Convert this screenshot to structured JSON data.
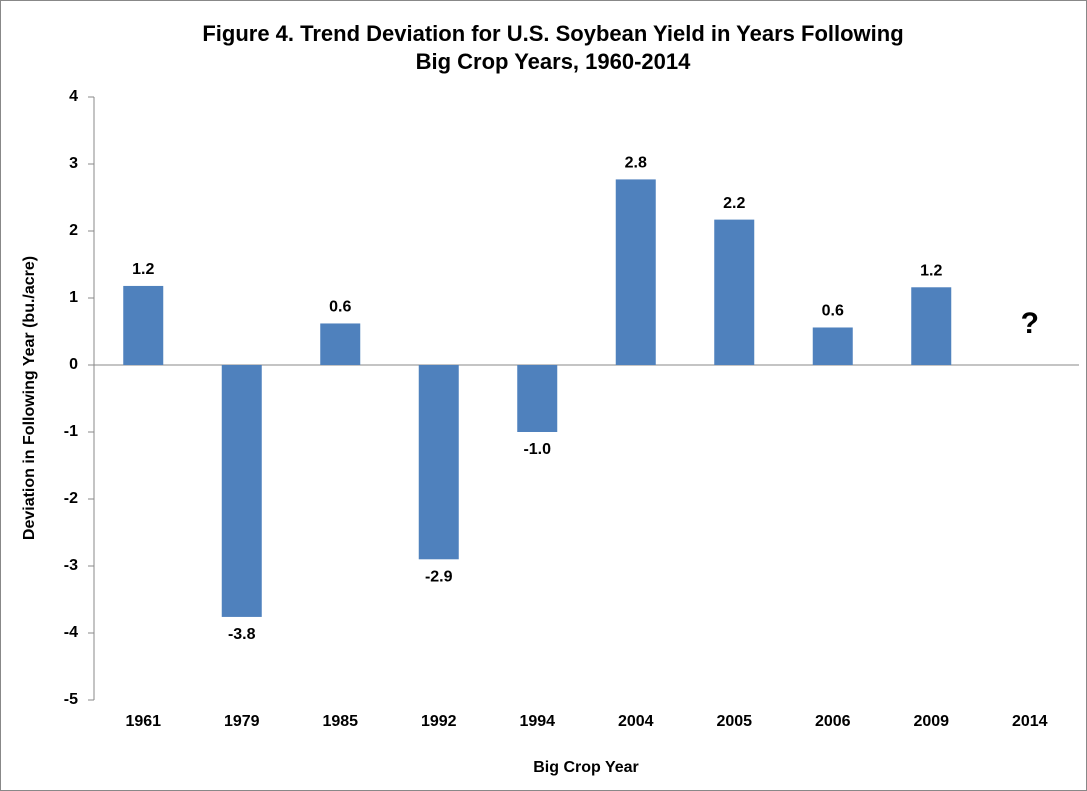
{
  "chart_data": {
    "type": "bar",
    "title": [
      "Figure 4. Trend Deviation for U.S. Soybean Yield in Years Following",
      "Big Crop Years, 1960-2014"
    ],
    "x_label": "Big Crop Year",
    "y_label": "Deviation in Following Year (bu./acre)",
    "categories": [
      "1961",
      "1979",
      "1985",
      "1992",
      "1994",
      "2004",
      "2005",
      "2006",
      "2009",
      "2014"
    ],
    "values": [
      1.18,
      -3.76,
      0.62,
      -2.9,
      -1.0,
      2.77,
      2.17,
      0.56,
      1.16,
      null
    ],
    "value_labels": [
      "1.2",
      "-3.8",
      "0.6",
      "-2.9",
      "-1.0",
      "2.8",
      "2.2",
      "0.6",
      "1.2",
      null
    ],
    "annotation": "?",
    "color": "#4f81bd",
    "ylim": [
      -5,
      4
    ],
    "yticks": [
      -5,
      -4,
      -3,
      -2,
      -1,
      0,
      1,
      2,
      3,
      4
    ],
    "grid": false
  }
}
